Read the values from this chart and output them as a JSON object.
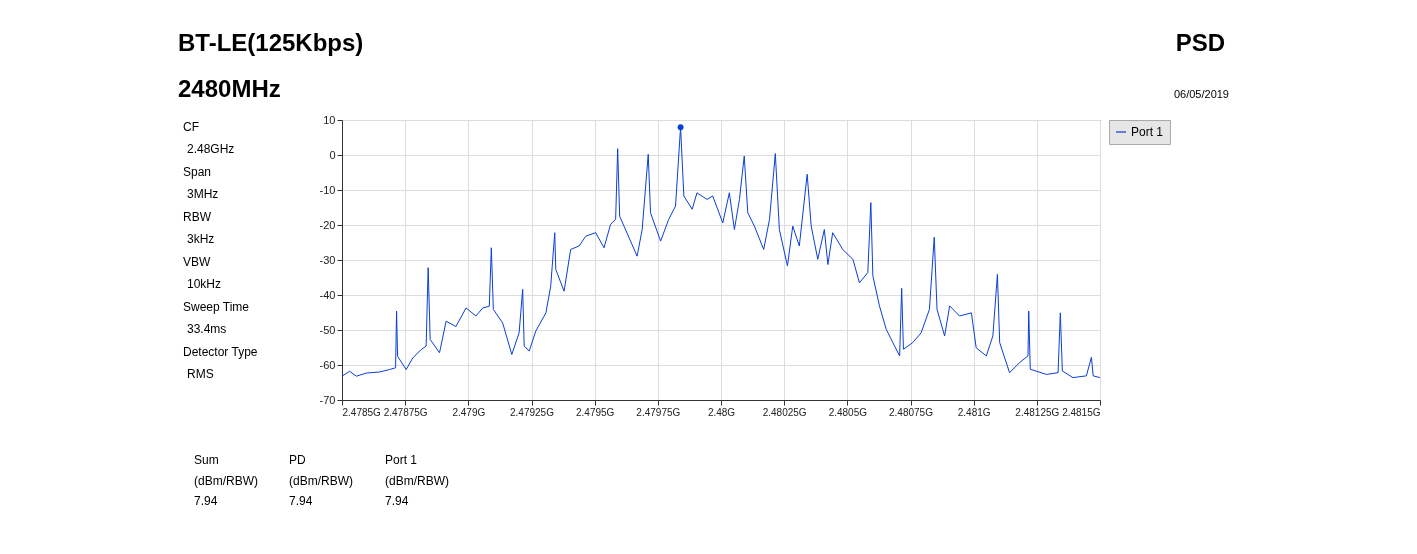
{
  "chart_data": {
    "type": "line",
    "title": "BT-LE(125Kbps)",
    "subtitle": "2480MHz",
    "annotations": [
      "PSD",
      "06/05/2019",
      "CF",
      "2.48GHz",
      "Span",
      "3MHz",
      "RBW",
      "3kHz",
      "VBW",
      "10kHz",
      "Sweep Time",
      "33.4ms",
      "Detector Type",
      "RMS",
      "Sum",
      "PD",
      "Port 1",
      "(dBm/RBW)",
      "(dBm/RBW)",
      "(dBm/RBW)",
      "7.94",
      "7.94",
      "7.94"
    ],
    "xlim": [
      2.4785,
      2.4815
    ],
    "xticks": [
      {
        "value": 2.4785,
        "label": "2.4785G"
      },
      {
        "value": 2.47875,
        "label": "2.47875G"
      },
      {
        "value": 2.479,
        "label": "2.479G"
      },
      {
        "value": 2.47925,
        "label": "2.47925G"
      },
      {
        "value": 2.4795,
        "label": "2.4795G"
      },
      {
        "value": 2.47975,
        "label": "2.47975G"
      },
      {
        "value": 2.48,
        "label": "2.48G"
      },
      {
        "value": 2.48025,
        "label": "2.48025G"
      },
      {
        "value": 2.4805,
        "label": "2.4805G"
      },
      {
        "value": 2.48075,
        "label": "2.48075G"
      },
      {
        "value": 2.481,
        "label": "2.481G"
      },
      {
        "value": 2.48125,
        "label": "2.48125G"
      },
      {
        "value": 2.4815,
        "label": "2.4815G"
      }
    ],
    "ylim": [
      -70,
      10
    ],
    "yticks": [
      10,
      0,
      -10,
      -20,
      -30,
      -40,
      -50,
      -60,
      -70
    ],
    "grid": true,
    "legend": "right",
    "line_style": "solid",
    "series": [
      {
        "name": "Port 1",
        "color": "#0a3fd6",
        "x": [
          2.4785,
          2.47853,
          2.478557,
          2.478596,
          2.478649,
          2.478688,
          2.478712,
          2.478716,
          2.47872,
          2.478754,
          2.47878,
          2.478813,
          2.478833,
          2.478841,
          2.478849,
          2.478886,
          2.478912,
          2.478951,
          2.478991,
          2.47903,
          2.479057,
          2.479083,
          2.479091,
          2.479099,
          2.479136,
          2.479172,
          2.479201,
          2.479215,
          2.479221,
          2.479241,
          2.479267,
          2.479307,
          2.479326,
          2.479342,
          2.479346,
          2.479379,
          2.479405,
          2.479438,
          2.479465,
          2.479504,
          2.479537,
          2.479563,
          2.479583,
          2.479591,
          2.479599,
          2.479636,
          2.479668,
          2.479688,
          2.479712,
          2.479721,
          2.479761,
          2.479793,
          2.47982,
          2.47984,
          2.479853,
          2.479886,
          2.479905,
          2.479945,
          2.479967,
          2.480007,
          2.480033,
          2.480053,
          2.480073,
          2.480092,
          2.480106,
          2.480132,
          2.480169,
          2.480192,
          2.480215,
          2.480231,
          2.480263,
          2.480284,
          2.48031,
          2.480341,
          2.480357,
          2.480383,
          2.480409,
          2.480423,
          2.480442,
          2.480482,
          2.480522,
          2.480548,
          2.480581,
          2.480593,
          2.480601,
          2.480627,
          2.480654,
          2.48068,
          2.480707,
          2.480715,
          2.480722,
          2.480759,
          2.480792,
          2.480825,
          2.480844,
          2.480855,
          2.480885,
          2.480905,
          2.480944,
          2.480991,
          2.48101,
          2.48105,
          2.481076,
          2.481094,
          2.481103,
          2.481142,
          2.481182,
          2.481215,
          2.481218,
          2.481224,
          2.481288,
          2.481334,
          2.481343,
          2.481351,
          2.481393,
          2.481446,
          2.481466,
          2.481473,
          2.4815
        ],
        "values": [
          -63.2,
          -61.8,
          -63.2,
          -62.3,
          -62,
          -61.3,
          -60.8,
          -44.6,
          -57.5,
          -61.3,
          -58,
          -55.6,
          -54.6,
          -32.2,
          -52.7,
          -56.5,
          -47.5,
          -49,
          -43.7,
          -46,
          -43.7,
          -43.2,
          -26.5,
          -44.1,
          -48,
          -57,
          -50.8,
          -38.4,
          -54.6,
          -56,
          -50.3,
          -45.1,
          -37.5,
          -22.2,
          -32.7,
          -38.9,
          -27,
          -26,
          -23.2,
          -22.2,
          -26.5,
          -19.8,
          -18.4,
          1.8,
          -17.5,
          -23.6,
          -28.9,
          -21.3,
          0.2,
          -16.5,
          -24.6,
          -18.4,
          -14.6,
          7.94,
          -11.7,
          -15.5,
          -10.8,
          -12.7,
          -11.7,
          -19.4,
          -10.8,
          -21.3,
          -12.7,
          -0.3,
          -16.5,
          -20.3,
          -27,
          -18.4,
          0.4,
          -21.3,
          -31.7,
          -20.3,
          -26,
          -5.5,
          -20.3,
          -29.8,
          -21.3,
          -31.3,
          -22.2,
          -27,
          -29.8,
          -36.5,
          -33.6,
          -13.6,
          -34.5,
          -43.1,
          -49.8,
          -53.6,
          -57.4,
          -38.1,
          -55.5,
          -53.6,
          -50.8,
          -44.1,
          -23.5,
          -44.1,
          -51.7,
          -43.1,
          -46,
          -45.1,
          -55.1,
          -57.4,
          -51.7,
          -34.1,
          -53.6,
          -62.2,
          -59.3,
          -57.4,
          -44.6,
          -61.2,
          -62.7,
          -62.2,
          -45.1,
          -61.7,
          -63.6,
          -63.1,
          -57.8,
          -63.1,
          -63.6
        ]
      },
      {
        "color": "#0a3fd6",
        "type": "scatter",
        "marker": "circle",
        "x": [
          2.47984
        ],
        "values": [
          7.94
        ]
      }
    ]
  }
}
